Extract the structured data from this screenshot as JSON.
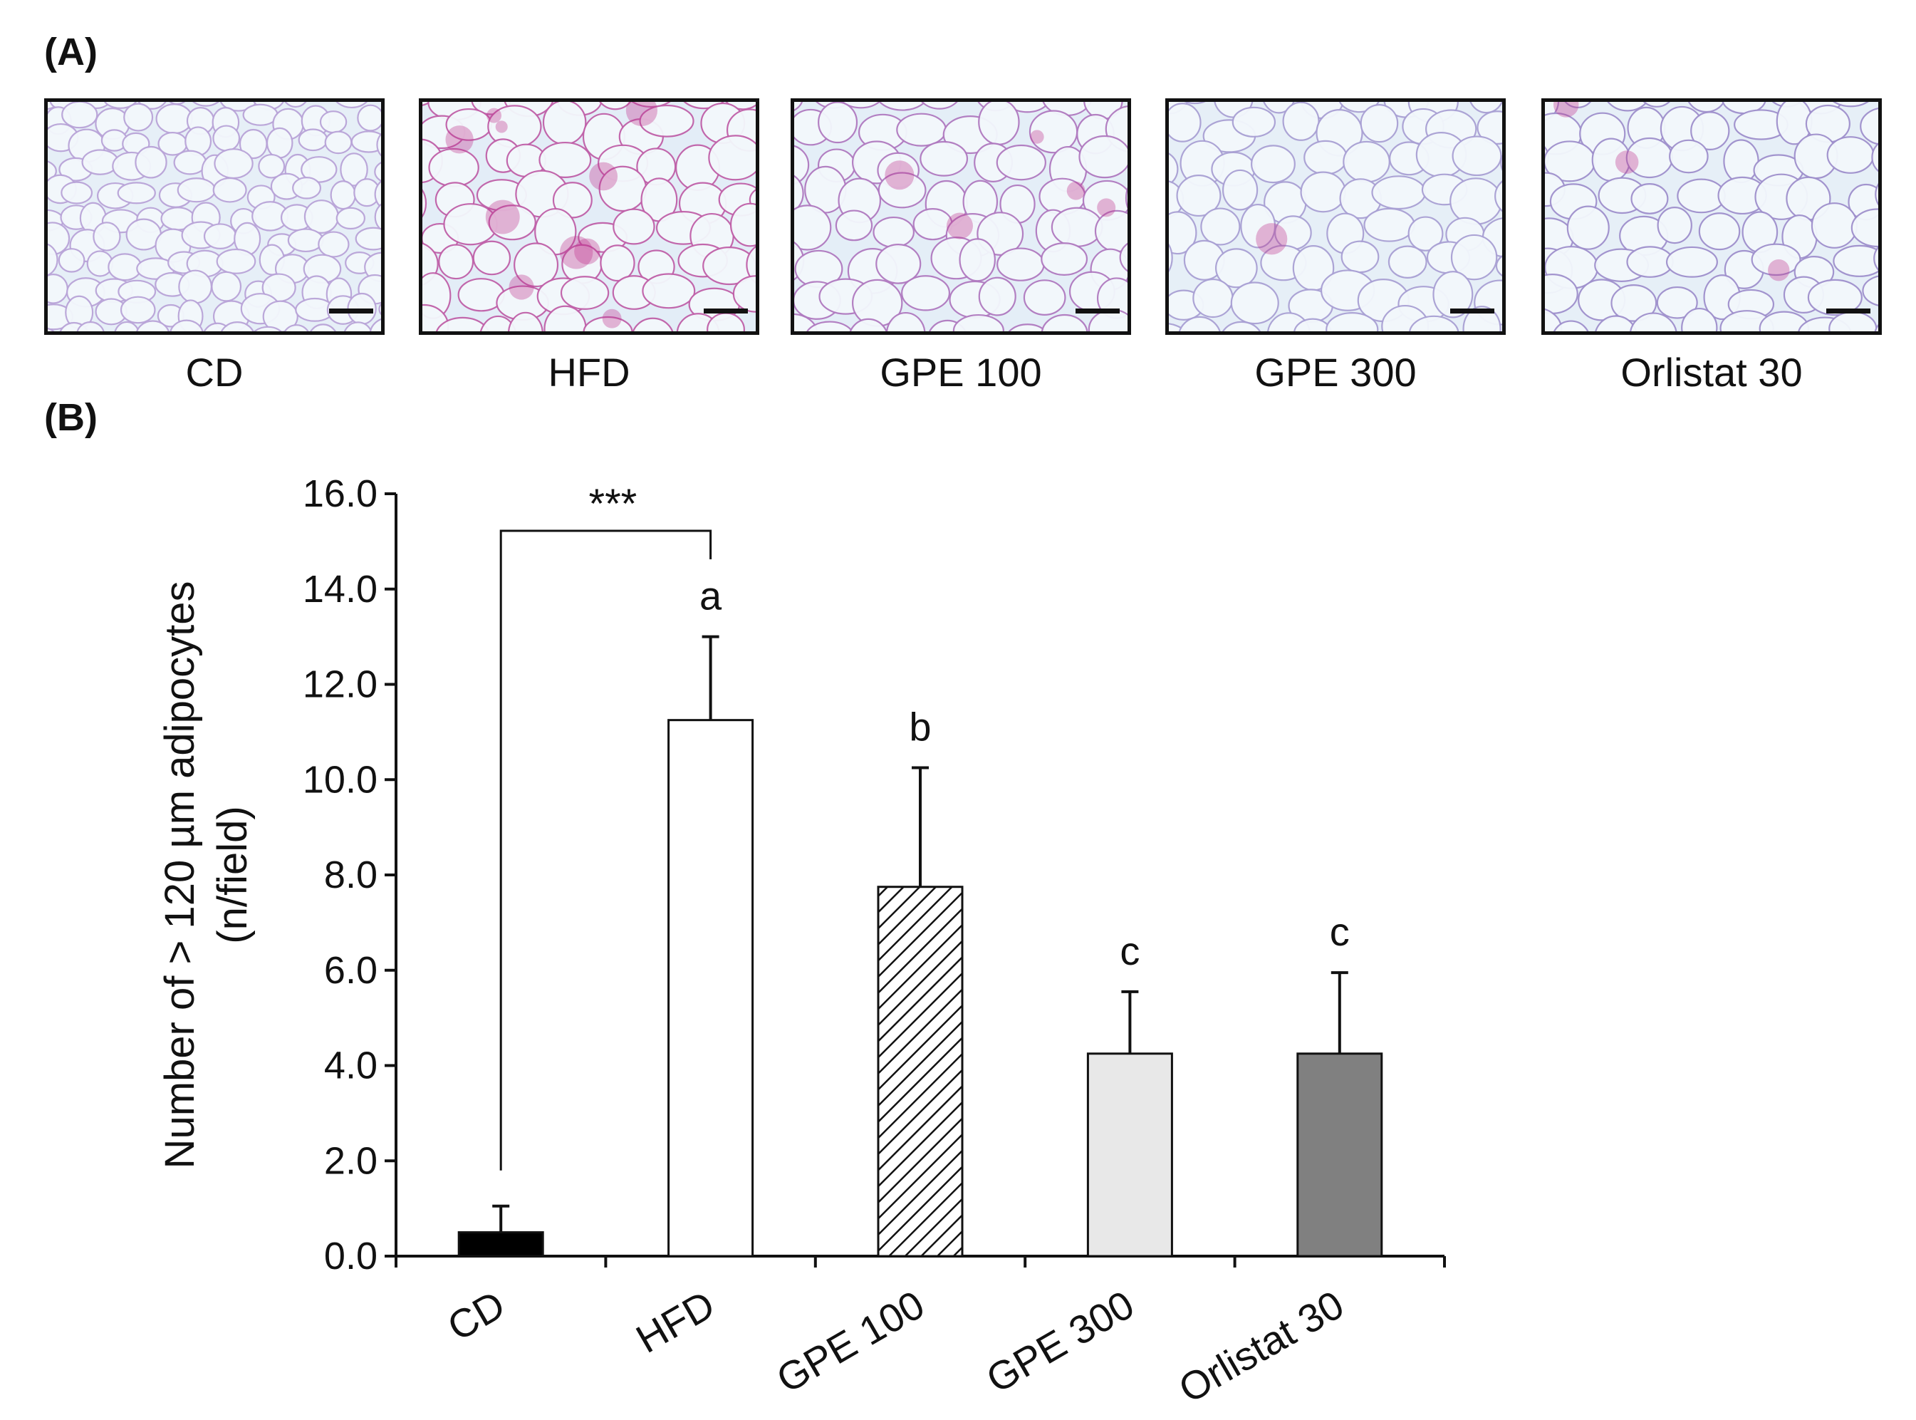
{
  "panel_a_label": "(A)",
  "panel_b_label": "(B)",
  "micrographs": [
    {
      "caption": "CD",
      "tone": "#e6eff7",
      "stain": "#b9a4d8",
      "pink": 0.0
    },
    {
      "caption": "HFD",
      "tone": "#e3edf7",
      "stain": "#c060a8",
      "pink": 0.8
    },
    {
      "caption": "GPE 100",
      "tone": "#e4eef7",
      "stain": "#b07ac0",
      "pink": 0.45
    },
    {
      "caption": "GPE 300",
      "tone": "#e6eff7",
      "stain": "#a9a0d4",
      "pink": 0.1
    },
    {
      "caption": "Orlistat 30",
      "tone": "#e6eff7",
      "stain": "#9f90cc",
      "pink": 0.25
    }
  ],
  "chart_data": {
    "type": "bar",
    "categories": [
      "CD",
      "HFD",
      "GPE 100",
      "GPE 300",
      "Orlistat 30"
    ],
    "values": [
      0.5,
      11.25,
      7.75,
      4.25,
      4.25
    ],
    "errors": [
      0.55,
      1.75,
      2.5,
      1.3,
      1.7
    ],
    "fills": [
      "#000000",
      "#ffffff",
      "hatch",
      "#e8e8e8",
      "#808080"
    ],
    "letters": [
      "",
      "a",
      "b",
      "c",
      "c"
    ],
    "ylabel_line1": "Number of > 120 µm adipocytes",
    "ylabel_line2": "(n/field)",
    "xlabel": "",
    "ylim": [
      0,
      16
    ],
    "yticks": [
      "0.0",
      "2.0",
      "4.0",
      "6.0",
      "8.0",
      "10.0",
      "12.0",
      "14.0",
      "16.0"
    ],
    "significance": {
      "from": "CD",
      "to": "HFD",
      "label": "***"
    },
    "grid": false
  }
}
